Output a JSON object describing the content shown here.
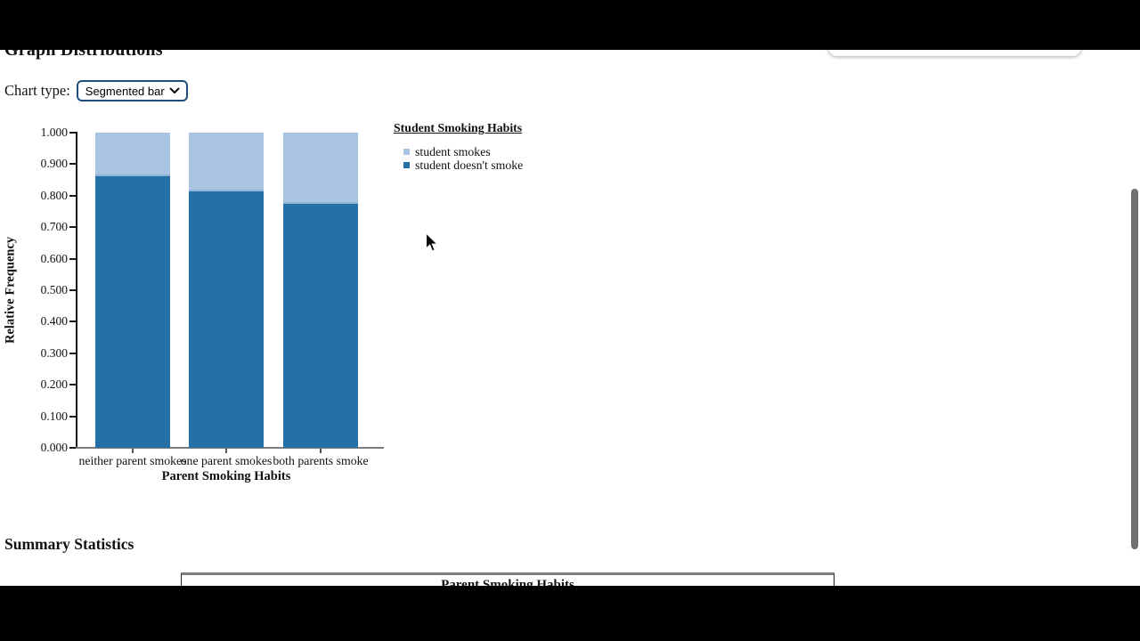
{
  "page": {
    "title": "Graph Distributions",
    "chart_type_label": "Chart type:",
    "chart_type_value": "Segmented bar",
    "summary_title": "Summary Statistics",
    "table_header": "Parent Smoking Habits"
  },
  "legend": {
    "title": "Student Smoking Habits",
    "items": [
      {
        "label": "student smokes",
        "color": "#a9c4e3"
      },
      {
        "label": "student doesn't smoke",
        "color": "#2471a8"
      }
    ]
  },
  "chart_data": {
    "type": "bar",
    "subtype": "segmented_stacked",
    "title": "Student Smoking Habits",
    "xlabel": "Parent Smoking Habits",
    "ylabel": "Relative Frequency",
    "categories": [
      "neither parent smokes",
      "one parent smokes",
      "both parents smoke"
    ],
    "series": [
      {
        "name": "student doesn't smoke",
        "color": "#2471a8",
        "values": [
          0.861,
          0.814,
          0.775
        ]
      },
      {
        "name": "student smokes",
        "color": "#a9c4e3",
        "values": [
          0.139,
          0.186,
          0.225
        ]
      }
    ],
    "ylim": [
      0.0,
      1.0
    ],
    "ytick_step": 0.1,
    "ytick_decimals": 3,
    "grid": false,
    "legend_position": "right"
  },
  "colors": {
    "select_border": "#1d4e7a",
    "segment_separator": "#8fb2d6",
    "axis_dark": "#1a1a1a",
    "axis_gray": "#7b7b7b"
  },
  "scrollbar": {
    "visible": true
  }
}
